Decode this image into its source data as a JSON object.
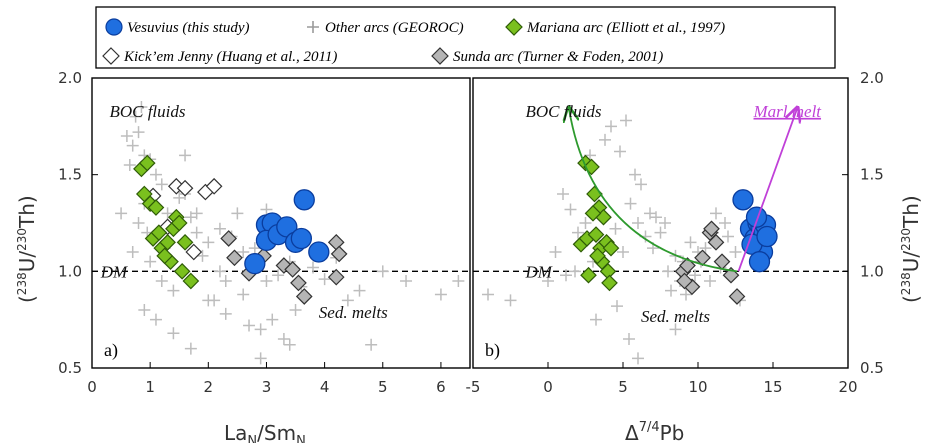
{
  "legend": [
    {
      "marker": "circle-blue",
      "label": "Vesuvius (this study)"
    },
    {
      "marker": "plus-gray",
      "label": "Other arcs (GEOROC)"
    },
    {
      "marker": "diamond-green",
      "label": "Mariana arc (Elliott et al., 1997)"
    },
    {
      "marker": "diamond-white",
      "label": "Kick’em Jenny (Huang et al., 2011)"
    },
    {
      "marker": "diamond-gray",
      "label": "Sunda arc (Turner & Foden, 2001)"
    }
  ],
  "colors": {
    "vesuvius": "#1f6fe0",
    "vesuvius_edge": "#0a3d9e",
    "other_arcs": "#bdbdbd",
    "mariana": "#7ac01e",
    "mariana_edge": "#2f5c08",
    "kick_em_jenny": "#ffffff",
    "sunda": "#b5b5b5",
    "green_arrow": "#2e9a2e",
    "marl_arrow": "#c040d8"
  },
  "y_axis_title": {
    "open": "(",
    "sup1": "238",
    "mid": "U/",
    "sup2": "230",
    "close": "Th)"
  },
  "chart_data": [
    {
      "type": "scatter",
      "panel_label": "a)",
      "xlim": [
        0,
        6.5
      ],
      "ylim": [
        0.5,
        2.0
      ],
      "xticks": [
        0,
        1,
        2,
        3,
        4,
        5,
        6
      ],
      "xtick_labels": [
        "0",
        "1",
        "2",
        "3",
        "4",
        "5",
        "6"
      ],
      "yticks": [
        0.5,
        1.0,
        1.5,
        2.0
      ],
      "ytick_labels": [
        "0.5",
        "1.0",
        "1.5",
        "2.0"
      ],
      "xlabel": {
        "base1": "La",
        "sub1": "N",
        "mid": "/Sm",
        "sub2": "N"
      },
      "reference_line": {
        "y": 1.0,
        "label": "DM"
      },
      "annotations": [
        {
          "text": "BOC fluids",
          "x": 0.3,
          "y": 1.83
        },
        {
          "text": "Sed. melts",
          "x": 3.9,
          "y": 0.79
        },
        {
          "text": "DM",
          "x": 0.15,
          "y": 1.0
        }
      ],
      "series": [
        {
          "name": "Vesuvius (this study)",
          "marker": "circle",
          "x": [
            2.8,
            3.0,
            3.1,
            3.0,
            3.2,
            3.35,
            3.5,
            3.6,
            3.65,
            3.9
          ],
          "y": [
            1.04,
            1.24,
            1.25,
            1.16,
            1.19,
            1.23,
            1.15,
            1.17,
            1.37,
            1.1
          ]
        },
        {
          "name": "Other arcs (GEOROC)",
          "marker": "plus",
          "x": [
            0.7,
            0.8,
            0.9,
            1.0,
            0.75,
            0.85,
            1.1,
            1.2,
            0.6,
            0.65,
            0.9,
            1.3,
            1.5,
            1.6,
            1.7,
            1.8,
            2.0,
            2.2,
            2.4,
            2.5,
            2.6,
            2.8,
            3.0,
            3.2,
            3.4,
            3.6,
            3.8,
            4.0,
            4.2,
            4.4,
            4.6,
            5.0,
            5.4,
            6.0,
            6.3,
            0.5,
            0.8,
            1.0,
            1.2,
            1.4,
            1.6,
            1.9,
            2.1,
            2.3,
            2.7,
            2.9,
            3.3,
            3.5,
            0.9,
            1.1,
            1.4,
            1.7,
            2.0,
            2.3,
            2.6,
            3.1,
            3.4,
            0.7,
            1.5,
            2.2,
            2.9,
            1.8,
            0.95,
            1.25,
            3.0,
            4.8
          ],
          "y": [
            1.65,
            1.72,
            1.6,
            1.58,
            1.8,
            1.85,
            1.5,
            1.45,
            1.7,
            1.55,
            1.35,
            1.3,
            1.25,
            1.6,
            1.28,
            1.2,
            1.15,
            1.22,
            1.18,
            1.3,
            1.1,
            1.12,
            0.95,
            0.98,
            1.05,
            0.92,
            1.02,
            0.96,
            1.07,
            0.85,
            0.9,
            1.0,
            0.95,
            0.88,
            0.95,
            1.3,
            1.25,
            1.05,
            0.95,
            0.9,
            1.4,
            1.08,
            0.85,
            0.78,
            0.72,
            0.7,
            0.65,
            0.8,
            0.8,
            0.75,
            0.68,
            0.6,
            0.85,
            0.95,
            0.88,
            0.75,
            0.62,
            1.1,
            1.38,
            1.0,
            0.55,
            1.3,
            1.2,
            1.12,
            1.32,
            0.62
          ]
        },
        {
          "name": "Mariana arc (Elliott et al., 1997)",
          "marker": "diamond",
          "x": [
            0.85,
            0.95,
            0.9,
            1.0,
            1.1,
            1.05,
            1.2,
            1.3,
            1.4,
            1.45,
            1.5,
            1.35,
            1.6,
            1.7,
            1.55,
            1.25,
            1.15
          ],
          "y": [
            1.53,
            1.56,
            1.4,
            1.35,
            1.33,
            1.17,
            1.12,
            1.15,
            1.22,
            1.28,
            1.25,
            1.05,
            1.15,
            0.95,
            1.0,
            1.08,
            1.2
          ]
        },
        {
          "name": "Kick’em Jenny (Huang et al., 2011)",
          "marker": "diamond",
          "x": [
            1.45,
            1.6,
            1.95,
            2.1,
            1.05,
            1.3,
            1.75
          ],
          "y": [
            1.44,
            1.43,
            1.41,
            1.44,
            1.39,
            1.23,
            1.1
          ]
        },
        {
          "name": "Sunda arc (Turner & Foden, 2001)",
          "marker": "diamond",
          "x": [
            2.35,
            2.45,
            2.7,
            2.95,
            3.3,
            3.45,
            3.55,
            3.65,
            4.2,
            4.25,
            4.2
          ],
          "y": [
            1.17,
            1.07,
            0.99,
            1.08,
            1.03,
            1.01,
            0.94,
            0.87,
            1.15,
            1.09,
            0.97
          ]
        }
      ]
    },
    {
      "type": "scatter",
      "panel_label": "b)",
      "xlim": [
        -5,
        20
      ],
      "ylim": [
        0.5,
        2.0
      ],
      "xticks": [
        -5,
        0,
        5,
        10,
        15,
        20
      ],
      "xtick_labels": [
        "-5",
        "0",
        "5",
        "10",
        "15",
        "20"
      ],
      "yticks": [
        0.5,
        1.0,
        1.5,
        2.0
      ],
      "ytick_labels": [
        "0.5",
        "1.0",
        "1.5",
        "2.0"
      ],
      "xlabel": {
        "delta": "Δ",
        "sup": "7/4",
        "tail": "Pb"
      },
      "reference_line": {
        "y": 1.0,
        "label": "DM"
      },
      "annotations": [
        {
          "text": "BOC fluids",
          "x": -1.5,
          "y": 1.83
        },
        {
          "text": "Sed. melts",
          "x": 6.2,
          "y": 0.77
        },
        {
          "text": "DM",
          "x": -1.5,
          "y": 1.0
        },
        {
          "text": "Marl melt",
          "x": 13.7,
          "y": 1.83
        }
      ],
      "curved_arrow": {
        "from": [
          12.6,
          1.0
        ],
        "control": [
          3.0,
          1.1
        ],
        "to": [
          1.4,
          1.84
        ]
      },
      "straight_arrow": {
        "from": [
          12.7,
          1.0
        ],
        "to": [
          16.6,
          1.84
        ]
      },
      "series": [
        {
          "name": "Vesuvius (this study)",
          "marker": "circle",
          "x": [
            13.0,
            13.5,
            13.8,
            14.0,
            14.2,
            14.4,
            14.5,
            14.3,
            13.6,
            14.6,
            14.1,
            13.9
          ],
          "y": [
            1.37,
            1.22,
            1.17,
            1.25,
            1.23,
            1.2,
            1.24,
            1.1,
            1.14,
            1.18,
            1.05,
            1.28
          ]
        },
        {
          "name": "Other arcs (GEOROC)",
          "marker": "plus",
          "x": [
            2.0,
            2.5,
            3.0,
            3.5,
            4.0,
            4.5,
            5.0,
            5.5,
            6.0,
            6.5,
            7.0,
            7.5,
            8.0,
            8.5,
            9.0,
            9.5,
            10.0,
            10.5,
            11.0,
            11.5,
            12.0,
            12.5,
            1.0,
            1.5,
            0.5,
            -2.5,
            0.0,
            1.2,
            2.8,
            3.8,
            4.2,
            4.8,
            5.2,
            5.8,
            6.2,
            6.8,
            7.2,
            7.8,
            8.2,
            8.8,
            9.2,
            9.8,
            10.2,
            10.8,
            11.2,
            11.8,
            3.2,
            4.6,
            5.4,
            2.2,
            1.8,
            6.0,
            8.5,
            12.8,
            -4.0
          ],
          "y": [
            1.2,
            1.25,
            1.05,
            1.3,
            1.15,
            1.22,
            1.1,
            1.35,
            1.25,
            1.18,
            1.12,
            1.2,
            1.0,
            1.08,
            1.05,
            1.15,
            1.1,
            1.12,
            1.2,
            1.02,
            1.18,
            1.1,
            1.4,
            1.32,
            1.1,
            0.85,
            0.95,
            0.98,
            1.6,
            1.68,
            1.75,
            1.62,
            1.78,
            1.5,
            1.45,
            1.3,
            1.28,
            1.25,
            0.9,
            0.95,
            0.88,
            0.98,
            1.05,
            0.95,
            1.3,
            1.25,
            0.75,
            0.82,
            0.65,
            1.15,
            1.0,
            0.55,
            0.7,
            0.85,
            0.88
          ]
        },
        {
          "name": "Mariana arc (Elliott et al., 1997)",
          "marker": "diamond",
          "x": [
            2.5,
            2.9,
            3.1,
            3.4,
            3.7,
            2.2,
            2.6,
            3.2,
            3.5,
            3.9,
            4.2,
            4.0,
            3.6,
            3.3,
            2.7,
            4.1,
            3.0
          ],
          "y": [
            1.56,
            1.54,
            1.4,
            1.33,
            1.28,
            1.14,
            1.17,
            1.19,
            1.12,
            1.15,
            1.12,
            1.0,
            1.05,
            1.08,
            0.98,
            0.94,
            1.3
          ]
        },
        {
          "name": "Sunda arc (Turner & Foden, 2001)",
          "marker": "diamond",
          "x": [
            9.0,
            9.3,
            9.6,
            10.3,
            10.8,
            11.2,
            10.9,
            11.6,
            12.2,
            12.6,
            9.1
          ],
          "y": [
            1.0,
            1.03,
            0.92,
            1.07,
            1.2,
            1.15,
            1.22,
            1.05,
            0.98,
            0.87,
            0.95
          ]
        }
      ]
    }
  ]
}
